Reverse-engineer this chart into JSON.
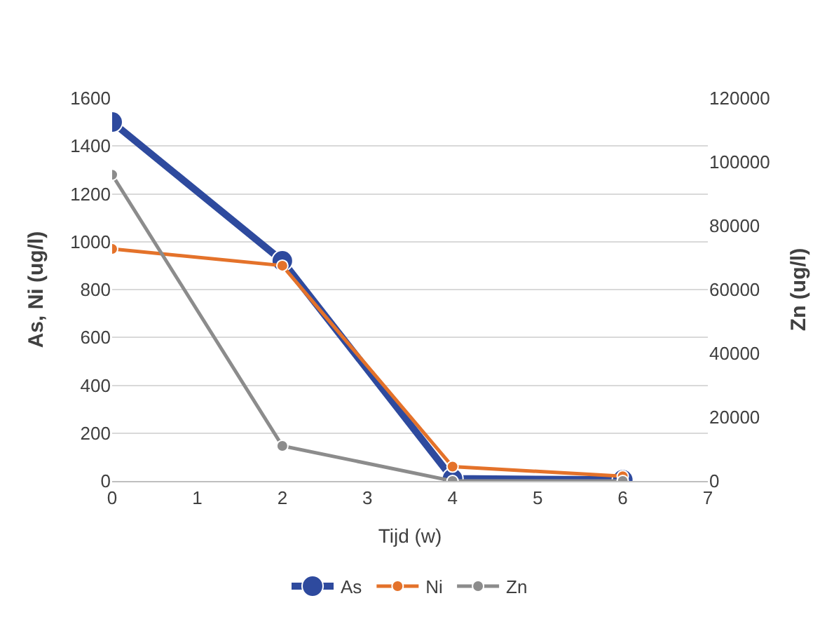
{
  "chart_data": {
    "type": "line",
    "xlabel": "Tijd (w)",
    "ylabel": "As, Ni (ug/l)",
    "y2label": "Zn (ug/l)",
    "x": [
      0,
      2,
      4,
      6
    ],
    "series": [
      {
        "name": "As",
        "color": "#2e4a9e",
        "values": [
          1500,
          920,
          10,
          5
        ]
      },
      {
        "name": "Ni",
        "color": "#e4722a",
        "values": [
          970,
          900,
          60,
          20
        ]
      },
      {
        "name": "Zn",
        "color": "#8c8c8c",
        "values": [
          96000,
          11000,
          0,
          0
        ],
        "axis": "y2"
      }
    ],
    "xlim": [
      0,
      7
    ],
    "xticks": [
      0,
      1,
      2,
      3,
      4,
      5,
      6,
      7
    ],
    "ylim": [
      0,
      1600
    ],
    "yticks": [
      0,
      200,
      400,
      600,
      800,
      1000,
      1200,
      1400,
      1600
    ],
    "y2lim": [
      0,
      120000
    ],
    "y2ticks": [
      0,
      20000,
      40000,
      60000,
      80000,
      100000,
      120000
    ],
    "grid": "y",
    "legend": "bottom",
    "marker": "circle",
    "line_style": "solid"
  }
}
